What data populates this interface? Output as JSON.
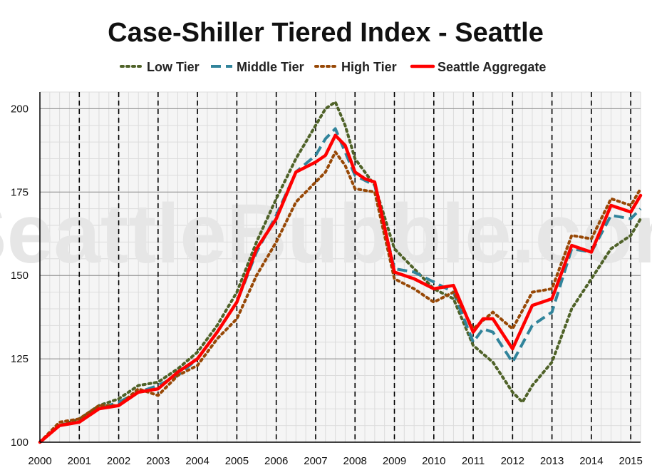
{
  "chart_data": {
    "type": "line",
    "title": "Case-Shiller Tiered Index - Seattle",
    "watermark": "SeattleBubble.com",
    "xlabel": "",
    "ylabel": "",
    "xlim": [
      2000,
      2015.25
    ],
    "ylim": [
      100,
      205
    ],
    "x_ticks": [
      2000,
      2001,
      2002,
      2003,
      2004,
      2005,
      2006,
      2007,
      2008,
      2009,
      2010,
      2011,
      2012,
      2013,
      2014,
      2015
    ],
    "y_ticks": [
      100,
      125,
      150,
      175,
      200
    ],
    "grid": true,
    "legend_position": "top",
    "series": [
      {
        "name": "Low Tier",
        "color": "#4f6228",
        "dash": "dotted",
        "x": [
          2000.0,
          2000.5,
          2001.0,
          2001.5,
          2002.0,
          2002.5,
          2003.0,
          2003.5,
          2004.0,
          2004.5,
          2005.0,
          2005.5,
          2006.0,
          2006.5,
          2007.0,
          2007.25,
          2007.5,
          2007.75,
          2008.0,
          2008.5,
          2009.0,
          2009.5,
          2010.0,
          2010.5,
          2011.0,
          2011.5,
          2012.0,
          2012.25,
          2012.5,
          2013.0,
          2013.5,
          2014.0,
          2014.5,
          2015.0,
          2015.25
        ],
        "values": [
          100,
          105,
          107,
          111,
          113,
          117,
          118,
          122,
          127,
          135,
          145,
          160,
          173,
          185,
          195,
          200,
          202,
          195,
          185,
          177,
          158,
          152,
          146,
          143,
          129,
          124,
          115,
          112,
          117,
          124,
          140,
          149,
          158,
          162,
          167
        ]
      },
      {
        "name": "Middle Tier",
        "color": "#31849b",
        "dash": "dashed",
        "x": [
          2000.0,
          2000.5,
          2001.0,
          2001.5,
          2002.0,
          2002.5,
          2003.0,
          2003.5,
          2004.0,
          2004.5,
          2005.0,
          2005.5,
          2006.0,
          2006.5,
          2007.0,
          2007.25,
          2007.5,
          2007.75,
          2008.0,
          2008.5,
          2009.0,
          2009.5,
          2010.0,
          2010.5,
          2011.0,
          2011.25,
          2011.5,
          2012.0,
          2012.5,
          2013.0,
          2013.5,
          2014.0,
          2014.5,
          2015.0,
          2015.25
        ],
        "values": [
          100,
          105,
          106,
          110,
          112,
          115,
          117,
          120,
          125,
          133,
          142,
          157,
          168,
          181,
          186,
          191,
          194,
          187,
          180,
          177,
          152,
          151,
          148,
          145,
          130,
          134,
          133,
          124,
          135,
          139,
          158,
          157,
          168,
          167,
          170
        ]
      },
      {
        "name": "High Tier",
        "color": "#974806",
        "dash": "dotted",
        "x": [
          2000.0,
          2000.5,
          2001.0,
          2001.5,
          2002.0,
          2002.5,
          2003.0,
          2003.5,
          2004.0,
          2004.5,
          2005.0,
          2005.5,
          2006.0,
          2006.5,
          2007.0,
          2007.25,
          2007.5,
          2007.75,
          2008.0,
          2008.5,
          2009.0,
          2009.5,
          2010.0,
          2010.5,
          2011.0,
          2011.5,
          2012.0,
          2012.5,
          2013.0,
          2013.5,
          2014.0,
          2014.5,
          2015.0,
          2015.25
        ],
        "values": [
          100,
          106,
          107,
          111,
          111,
          116,
          114,
          120,
          123,
          131,
          137,
          150,
          160,
          172,
          178,
          181,
          187,
          183,
          176,
          175,
          149,
          146,
          142,
          145,
          134,
          139,
          134,
          145,
          146,
          162,
          161,
          173,
          171,
          176
        ]
      },
      {
        "name": "Seattle Aggregate",
        "color": "#ff0000",
        "dash": "solid",
        "x": [
          2000.0,
          2000.5,
          2001.0,
          2001.5,
          2002.0,
          2002.5,
          2003.0,
          2003.5,
          2004.0,
          2004.5,
          2005.0,
          2005.5,
          2006.0,
          2006.5,
          2007.0,
          2007.25,
          2007.5,
          2007.75,
          2008.0,
          2008.25,
          2008.5,
          2009.0,
          2009.5,
          2010.0,
          2010.5,
          2011.0,
          2011.25,
          2011.5,
          2012.0,
          2012.5,
          2013.0,
          2013.5,
          2014.0,
          2014.5,
          2015.0,
          2015.25
        ],
        "values": [
          100,
          105,
          106,
          110,
          111,
          115,
          116,
          121,
          125,
          133,
          142,
          158,
          167,
          181,
          184,
          186,
          192,
          189,
          181,
          179,
          178,
          151,
          149,
          146,
          147,
          133,
          137,
          137,
          128,
          141,
          143,
          159,
          157,
          171,
          169,
          174
        ]
      }
    ]
  }
}
